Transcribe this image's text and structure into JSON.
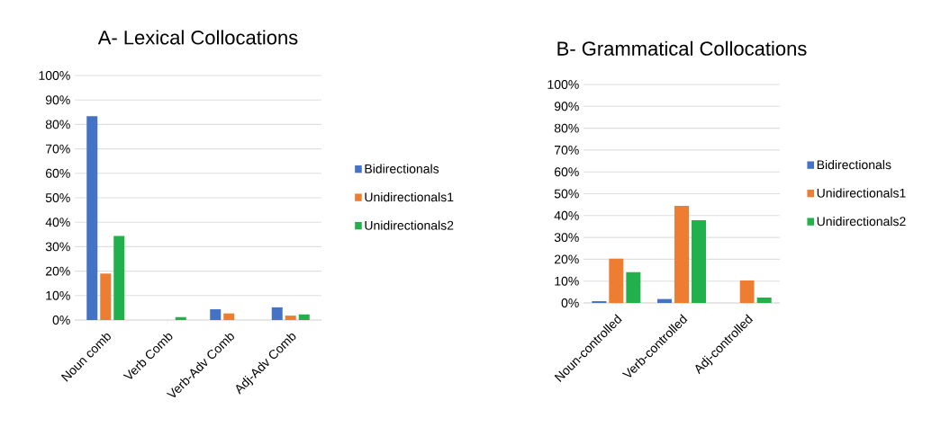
{
  "chart_data": [
    {
      "type": "bar",
      "title": "A- Lexical Collocations",
      "categories": [
        "Noun comb",
        "Verb Comb",
        "Verb-Adv Comb",
        "Adj-Adv Comb"
      ],
      "series": [
        {
          "name": "Bidirectionals",
          "color": "#4472c4",
          "values": [
            83.4,
            0,
            4.4,
            5.2
          ]
        },
        {
          "name": "Unidirectionals1",
          "color": "#ed7d31",
          "values": [
            19,
            0,
            2.7,
            1.8
          ]
        },
        {
          "name": "Unidirectionals2",
          "color": "#21b04b",
          "values": [
            34.4,
            1.2,
            0,
            2.3
          ]
        }
      ],
      "ylim": [
        0,
        100
      ],
      "yticks": [
        {
          "value": 0,
          "label": "0%"
        },
        {
          "value": 10,
          "label": "10%"
        },
        {
          "value": 20,
          "label": "20%"
        },
        {
          "value": 30,
          "label": "30%"
        },
        {
          "value": 40,
          "label": "40%"
        },
        {
          "value": 50,
          "label": "50%"
        },
        {
          "value": 60,
          "label": "60%"
        },
        {
          "value": 70,
          "label": "70%"
        },
        {
          "value": 80,
          "label": "80%"
        },
        {
          "value": 90,
          "label": "90%"
        },
        {
          "value": 100,
          "label": "100%"
        }
      ],
      "grid": "y",
      "legend": "right"
    },
    {
      "type": "bar",
      "title": "B- Grammatical Collocations",
      "categories": [
        "Noun-controlled",
        "Verb-controlled",
        "Adj-controlled"
      ],
      "series": [
        {
          "name": "Bidirectionals",
          "color": "#4472c4",
          "values": [
            0.8,
            1.8,
            0
          ]
        },
        {
          "name": "Unidirectionals1",
          "color": "#ed7d31",
          "values": [
            20.3,
            44.4,
            10.3
          ]
        },
        {
          "name": "Unidirectionals2",
          "color": "#21b04b",
          "values": [
            14.1,
            37.9,
            2.5
          ]
        }
      ],
      "ylim": [
        0,
        100
      ],
      "yticks": [
        {
          "value": 0,
          "label": "0%"
        },
        {
          "value": 10,
          "label": "10%"
        },
        {
          "value": 20,
          "label": "20%"
        },
        {
          "value": 30,
          "label": "30%"
        },
        {
          "value": 40,
          "label": "40%"
        },
        {
          "value": 50,
          "label": "50%"
        },
        {
          "value": 60,
          "label": "60%"
        },
        {
          "value": 70,
          "label": "70%"
        },
        {
          "value": 80,
          "label": "80%"
        },
        {
          "value": 90,
          "label": "90%"
        },
        {
          "value": 100,
          "label": "100%"
        }
      ],
      "grid": "y",
      "legend": "right"
    }
  ]
}
